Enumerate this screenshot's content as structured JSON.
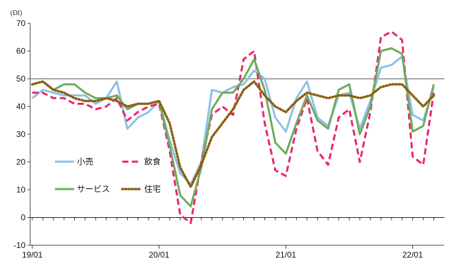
{
  "chart_data": {
    "type": "line",
    "ylabel": "(DI)",
    "ylim": [
      -10,
      70
    ],
    "yticks": [
      -10,
      0,
      10,
      20,
      30,
      40,
      50,
      60,
      70
    ],
    "reference_line": 50,
    "x_tick_labels": [
      {
        "label": "19/01",
        "index": 0
      },
      {
        "label": "20/01",
        "index": 12
      },
      {
        "label": "21/01",
        "index": 24
      },
      {
        "label": "22/01",
        "index": 36
      }
    ],
    "legend": {
      "placement": "left, inside plot"
    },
    "series": [
      {
        "name": "小売",
        "color": "#8ec0e6",
        "style": "solid",
        "values": [
          43,
          46,
          45,
          44,
          44,
          44,
          41,
          43,
          49,
          32,
          36,
          38,
          42,
          28,
          16,
          12,
          20,
          46,
          45,
          47,
          48,
          53,
          50,
          36,
          31,
          43,
          49,
          36,
          33,
          44,
          45,
          32,
          42,
          54,
          55,
          58,
          37,
          35,
          47
        ]
      },
      {
        "name": "飲食",
        "color": "#e8256f",
        "style": "dashed",
        "values": [
          45,
          45,
          43,
          43,
          41,
          41,
          39,
          40,
          43,
          35,
          38,
          40,
          41,
          24,
          1,
          -2,
          20,
          37,
          40,
          37,
          57,
          60,
          34,
          17,
          15,
          32,
          43,
          24,
          19,
          36,
          39,
          20,
          38,
          65,
          67,
          64,
          22,
          19,
          45
        ]
      },
      {
        "name": "サービス",
        "color": "#6dac5d",
        "style": "solid",
        "values": [
          48,
          49,
          46,
          48,
          48,
          45,
          43,
          43,
          44,
          39,
          41,
          41,
          42,
          26,
          8,
          4,
          18,
          39,
          45,
          45,
          50,
          57,
          46,
          27,
          23,
          34,
          44,
          35,
          32,
          46,
          48,
          30,
          40,
          60,
          61,
          59,
          31,
          33,
          48
        ]
      },
      {
        "name": "住宅",
        "color": "#8b6012",
        "style": "dotted",
        "values": [
          48,
          49,
          46,
          45,
          43,
          42,
          42,
          43,
          42,
          40,
          41,
          41,
          42,
          34,
          18,
          11,
          19,
          29,
          34,
          39,
          46,
          49,
          44,
          40,
          38,
          42,
          45,
          44,
          43,
          44,
          44,
          43,
          44,
          47,
          48,
          48,
          44,
          40,
          44
        ]
      }
    ]
  }
}
